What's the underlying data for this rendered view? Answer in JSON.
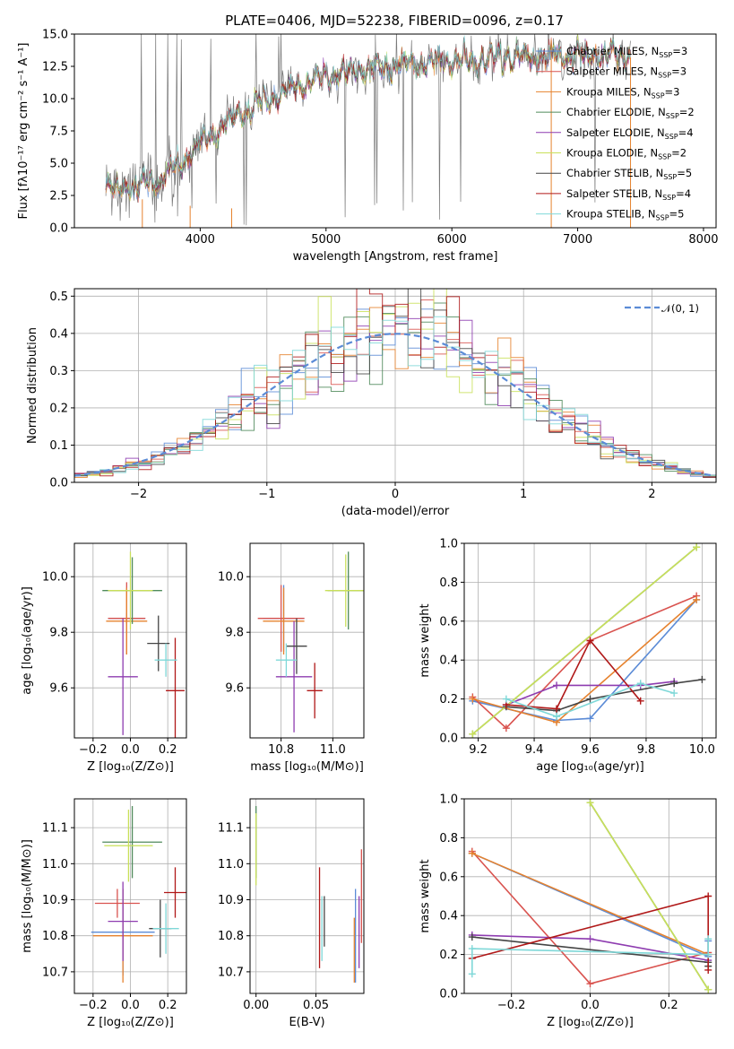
{
  "figure_title": "PLATE=0406, MJD=52238, FIBERID=0096, z=0.17",
  "colors": [
    "#5b8bd6",
    "#d9534f",
    "#e6822e",
    "#4f8a5b",
    "#8e3cb0",
    "#c9e05a",
    "#444444",
    "#b01818",
    "#7fd8d8"
  ],
  "chart_data": [
    {
      "id": "spectrum",
      "type": "line",
      "xlabel": "wavelength [Angstrom, rest frame]",
      "ylabel": "Flux [fλ10⁻¹⁷ erg cm⁻² s⁻¹ A⁻¹]",
      "xlim": [
        3000,
        8100
      ],
      "ylim": [
        0,
        15
      ],
      "xticks": [
        "4000",
        "5000",
        "6000",
        "7000",
        "8000"
      ],
      "yticks": [
        "0.0",
        "2.5",
        "5.0",
        "7.5",
        "10.0",
        "12.5",
        "15.0"
      ],
      "grid": false,
      "legend_position": "top-right",
      "continuum": [
        [
          3250,
          3.0
        ],
        [
          3500,
          3.2
        ],
        [
          3700,
          3.8
        ],
        [
          3900,
          5.5
        ],
        [
          4000,
          6.5
        ],
        [
          4200,
          8.0
        ],
        [
          4500,
          9.8
        ],
        [
          4800,
          11.0
        ],
        [
          5000,
          11.8
        ],
        [
          5300,
          12.3
        ],
        [
          5600,
          12.6
        ],
        [
          6000,
          12.9
        ],
        [
          6500,
          13.2
        ],
        [
          7000,
          13.3
        ],
        [
          7400,
          13.4
        ]
      ],
      "series": [
        {
          "name": "Chabrier MILES, N_SSP=3"
        },
        {
          "name": "Salpeter MILES, N_SSP=3"
        },
        {
          "name": "Kroupa MILES, N_SSP=3"
        },
        {
          "name": "Chabrier ELODIE, N_SSP=2"
        },
        {
          "name": "Salpeter ELODIE, N_SSP=4"
        },
        {
          "name": "Kroupa ELODIE, N_SSP=2"
        },
        {
          "name": "Chabrier STELIB, N_SSP=5"
        },
        {
          "name": "Salpeter STELIB, N_SSP=4"
        },
        {
          "name": "Kroupa STELIB, N_SSP=5"
        }
      ]
    },
    {
      "id": "residuals",
      "type": "line",
      "xlabel": "(data-model)/error",
      "ylabel": "Normed distribution",
      "xlim": [
        -2.5,
        2.5
      ],
      "ylim": [
        0,
        0.52
      ],
      "xticks": [
        "−2",
        "−1",
        "0",
        "1",
        "2"
      ],
      "xtickvals": [
        -2,
        -1,
        0,
        1,
        2
      ],
      "yticks": [
        "0.0",
        "0.1",
        "0.2",
        "0.3",
        "0.4",
        "0.5"
      ],
      "ytickvals": [
        0,
        0.1,
        0.2,
        0.3,
        0.4,
        0.5
      ],
      "grid": true,
      "legend": "𝒩(0, 1)",
      "legend_position": "top-right"
    },
    {
      "id": "age-vs-Z",
      "type": "scatter",
      "xlabel": "Z [log₁₀(Z/Z⊙)]",
      "ylabel": "age  [log₁₀(age/yr)]",
      "xlim": [
        -0.3,
        0.3
      ],
      "ylim": [
        9.42,
        10.12
      ],
      "xticks": [
        "−0.2",
        "0.0",
        "0.2"
      ],
      "xtickvals": [
        -0.2,
        0,
        0.2
      ],
      "yticks": [
        "9.6",
        "9.8",
        "10.0"
      ],
      "ytickvals": [
        9.6,
        9.8,
        10.0
      ],
      "points": [
        {
          "s": 0,
          "x": -0.02,
          "y": 9.85,
          "xe": 0.1,
          "ye": 0.02
        },
        {
          "s": 1,
          "x": -0.02,
          "y": 9.85,
          "xe": 0.1,
          "ye": 0.13
        },
        {
          "s": 2,
          "x": -0.02,
          "y": 9.84,
          "xe": 0.11,
          "ye": 0.12
        },
        {
          "s": 3,
          "x": 0.01,
          "y": 9.95,
          "xe": 0.16,
          "ye": 0.12
        },
        {
          "s": 4,
          "x": -0.04,
          "y": 9.64,
          "xe": 0.08,
          "ye": 0.21
        },
        {
          "s": 5,
          "x": 0.0,
          "y": 9.95,
          "xe": 0.12,
          "ye": 0.14
        },
        {
          "s": 6,
          "x": 0.15,
          "y": 9.76,
          "xe": 0.06,
          "ye": 0.1
        },
        {
          "s": 7,
          "x": 0.24,
          "y": 9.59,
          "xe": 0.05,
          "ye": 0.19
        },
        {
          "s": 8,
          "x": 0.19,
          "y": 9.7,
          "xe": 0.06,
          "ye": 0.06
        }
      ]
    },
    {
      "id": "age-vs-mass",
      "type": "scatter",
      "xlabel": "mass [log₁₀(M/M⊙)]",
      "ylabel": "",
      "xlim": [
        10.68,
        11.12
      ],
      "ylim": [
        9.42,
        10.12
      ],
      "xticks": [
        "10.8",
        "11.0"
      ],
      "xtickvals": [
        10.8,
        11.0
      ],
      "yticks": [
        "9.6",
        "9.8",
        "10.0"
      ],
      "ytickvals": [
        9.6,
        9.8,
        10.0
      ],
      "points": [
        {
          "s": 0,
          "x": 10.81,
          "y": 9.85,
          "xe": 0.08,
          "ye": 0.12
        },
        {
          "s": 1,
          "x": 10.8,
          "y": 9.85,
          "xe": 0.09,
          "ye": 0.12
        },
        {
          "s": 2,
          "x": 10.81,
          "y": 9.84,
          "xe": 0.08,
          "ye": 0.12
        },
        {
          "s": 3,
          "x": 11.06,
          "y": 9.95,
          "xe": 0.08,
          "ye": 0.14
        },
        {
          "s": 4,
          "x": 10.85,
          "y": 9.64,
          "xe": 0.07,
          "ye": 0.2
        },
        {
          "s": 5,
          "x": 11.05,
          "y": 9.95,
          "xe": 0.08,
          "ye": 0.13
        },
        {
          "s": 6,
          "x": 10.86,
          "y": 9.75,
          "xe": 0.04,
          "ye": 0.1
        },
        {
          "s": 7,
          "x": 10.93,
          "y": 9.59,
          "xe": 0.03,
          "ye": 0.1
        },
        {
          "s": 8,
          "x": 10.82,
          "y": 9.7,
          "xe": 0.04,
          "ye": 0.06
        }
      ]
    },
    {
      "id": "weight-vs-age",
      "type": "line",
      "xlabel": "age  [log₁₀(age/yr)]",
      "ylabel": "mass weight",
      "xlim": [
        9.15,
        10.05
      ],
      "ylim": [
        0,
        1
      ],
      "xticks": [
        "9.2",
        "9.4",
        "9.6",
        "9.8",
        "10.0"
      ],
      "xtickvals": [
        9.2,
        9.4,
        9.6,
        9.8,
        10.0
      ],
      "yticks": [
        "0.0",
        "0.2",
        "0.4",
        "0.6",
        "0.8",
        "1.0"
      ],
      "ytickvals": [
        0,
        0.2,
        0.4,
        0.6,
        0.8,
        1.0
      ],
      "series": [
        {
          "s": 0,
          "x": [
            9.18,
            9.48,
            9.6,
            9.98
          ],
          "y": [
            0.19,
            0.09,
            0.1,
            0.71
          ]
        },
        {
          "s": 1,
          "x": [
            9.18,
            9.3,
            9.6,
            9.98
          ],
          "y": [
            0.21,
            0.05,
            0.5,
            0.73
          ]
        },
        {
          "s": 2,
          "x": [
            9.18,
            9.48,
            9.98
          ],
          "y": [
            0.2,
            0.08,
            0.71
          ]
        },
        {
          "s": 3,
          "x": [
            9.18,
            9.98
          ],
          "y": [
            0.02,
            0.98
          ]
        },
        {
          "s": 4,
          "x": [
            9.3,
            9.48,
            9.78,
            9.9
          ],
          "y": [
            0.17,
            0.27,
            0.27,
            0.29
          ]
        },
        {
          "s": 5,
          "x": [
            9.18,
            9.98
          ],
          "y": [
            0.02,
            0.98
          ]
        },
        {
          "s": 6,
          "x": [
            9.3,
            9.48,
            9.6,
            9.9,
            10.0
          ],
          "y": [
            0.16,
            0.14,
            0.2,
            0.28,
            0.3
          ]
        },
        {
          "s": 7,
          "x": [
            9.3,
            9.48,
            9.6,
            9.78
          ],
          "y": [
            0.17,
            0.15,
            0.5,
            0.19
          ]
        },
        {
          "s": 8,
          "x": [
            9.3,
            9.48,
            9.78,
            9.9
          ],
          "y": [
            0.2,
            0.11,
            0.28,
            0.23
          ]
        }
      ]
    },
    {
      "id": "mass-vs-Z",
      "type": "scatter",
      "xlabel": "Z [log₁₀(Z/Z⊙)]",
      "ylabel": "mass [log₁₀(M/M⊙)]",
      "xlim": [
        -0.3,
        0.3
      ],
      "ylim": [
        10.64,
        11.18
      ],
      "xticks": [
        "−0.2",
        "0.0",
        "0.2"
      ],
      "xtickvals": [
        -0.2,
        0,
        0.2
      ],
      "yticks": [
        "10.7",
        "10.8",
        "10.9",
        "11.0",
        "11.1"
      ],
      "ytickvals": [
        10.7,
        10.8,
        10.9,
        11.0,
        11.1
      ],
      "points": [
        {
          "s": 0,
          "x": -0.04,
          "y": 10.81,
          "xe": 0.17,
          "ye": 0.12
        },
        {
          "s": 1,
          "x": -0.07,
          "y": 10.89,
          "xe": 0.12,
          "ye": 0.04
        },
        {
          "s": 2,
          "x": -0.04,
          "y": 10.8,
          "xe": 0.16,
          "ye": 0.13
        },
        {
          "s": 3,
          "x": 0.01,
          "y": 11.06,
          "xe": 0.16,
          "ye": 0.1
        },
        {
          "s": 4,
          "x": -0.04,
          "y": 10.84,
          "xe": 0.08,
          "ye": 0.11
        },
        {
          "s": 5,
          "x": -0.01,
          "y": 11.05,
          "xe": 0.13,
          "ye": 0.1
        },
        {
          "s": 6,
          "x": 0.16,
          "y": 10.82,
          "xe": 0.06,
          "ye": 0.08
        },
        {
          "s": 7,
          "x": 0.24,
          "y": 10.92,
          "xe": 0.06,
          "ye": 0.07
        },
        {
          "s": 8,
          "x": 0.19,
          "y": 10.82,
          "xe": 0.07,
          "ye": 0.07
        }
      ]
    },
    {
      "id": "mass-vs-ebv",
      "type": "scatter",
      "xlabel": "E(B-V)",
      "ylabel": "",
      "xlim": [
        -0.005,
        0.09
      ],
      "ylim": [
        10.64,
        11.18
      ],
      "xticks": [
        "0.00",
        "0.05"
      ],
      "xtickvals": [
        0,
        0.05
      ],
      "yticks": [
        "10.7",
        "10.8",
        "10.9",
        "11.0",
        "11.1"
      ],
      "ytickvals": [
        10.7,
        10.8,
        10.9,
        11.0,
        11.1
      ],
      "points": [
        {
          "s": 0,
          "x": 0.083,
          "y": 10.8,
          "xe": 0,
          "ye": 0.13
        },
        {
          "s": 1,
          "x": 0.088,
          "y": 10.91,
          "xe": 0,
          "ye": 0.13
        },
        {
          "s": 2,
          "x": 0.082,
          "y": 10.76,
          "xe": 0,
          "ye": 0.09
        },
        {
          "s": 3,
          "x": 0.0,
          "y": 11.06,
          "xe": 0,
          "ye": 0.1
        },
        {
          "s": 4,
          "x": 0.086,
          "y": 10.81,
          "xe": 0,
          "ye": 0.1
        },
        {
          "s": 5,
          "x": 0.0,
          "y": 11.04,
          "xe": 0,
          "ye": 0.1
        },
        {
          "s": 6,
          "x": 0.057,
          "y": 10.84,
          "xe": 0,
          "ye": 0.07
        },
        {
          "s": 7,
          "x": 0.053,
          "y": 10.85,
          "xe": 0,
          "ye": 0.14
        },
        {
          "s": 8,
          "x": 0.055,
          "y": 10.82,
          "xe": 0,
          "ye": 0.09
        }
      ]
    },
    {
      "id": "weight-vs-Z",
      "type": "line",
      "xlabel": "Z [log₁₀(Z/Z⊙)]",
      "ylabel": "mass weight",
      "xlim": [
        -0.32,
        0.32
      ],
      "ylim": [
        0,
        1
      ],
      "xticks": [
        "−0.2",
        "0.0",
        "0.2"
      ],
      "xtickvals": [
        -0.2,
        0,
        0.2
      ],
      "yticks": [
        "0.0",
        "0.2",
        "0.4",
        "0.6",
        "0.8",
        "1.0"
      ],
      "ytickvals": [
        0,
        0.2,
        0.4,
        0.6,
        0.8,
        1.0
      ],
      "series": [
        {
          "s": 0,
          "x": [
            -0.3,
            0.3,
            0.3
          ],
          "y": [
            0.72,
            0.19,
            0.27
          ]
        },
        {
          "s": 1,
          "x": [
            -0.3,
            0.0,
            0.3
          ],
          "y": [
            0.73,
            0.05,
            0.21
          ]
        },
        {
          "s": 2,
          "x": [
            -0.3,
            0.3
          ],
          "y": [
            0.72,
            0.2
          ]
        },
        {
          "s": 3,
          "x": [
            0.0,
            0.3
          ],
          "y": [
            0.98,
            0.02
          ]
        },
        {
          "s": 4,
          "x": [
            -0.3,
            0.0,
            0.3
          ],
          "y": [
            0.3,
            0.28,
            0.17
          ]
        },
        {
          "s": 5,
          "x": [
            0.0,
            0.3
          ],
          "y": [
            0.98,
            0.02
          ]
        },
        {
          "s": 6,
          "x": [
            -0.3,
            0.3,
            0.3
          ],
          "y": [
            0.29,
            0.16,
            0.14
          ]
        },
        {
          "s": 7,
          "x": [
            -0.3,
            0.3,
            0.3
          ],
          "y": [
            0.18,
            0.5,
            0.12
          ]
        },
        {
          "s": 8,
          "x": [
            -0.3,
            -0.3,
            0.3,
            0.3
          ],
          "y": [
            0.1,
            0.23,
            0.2,
            0.28
          ]
        }
      ]
    }
  ]
}
